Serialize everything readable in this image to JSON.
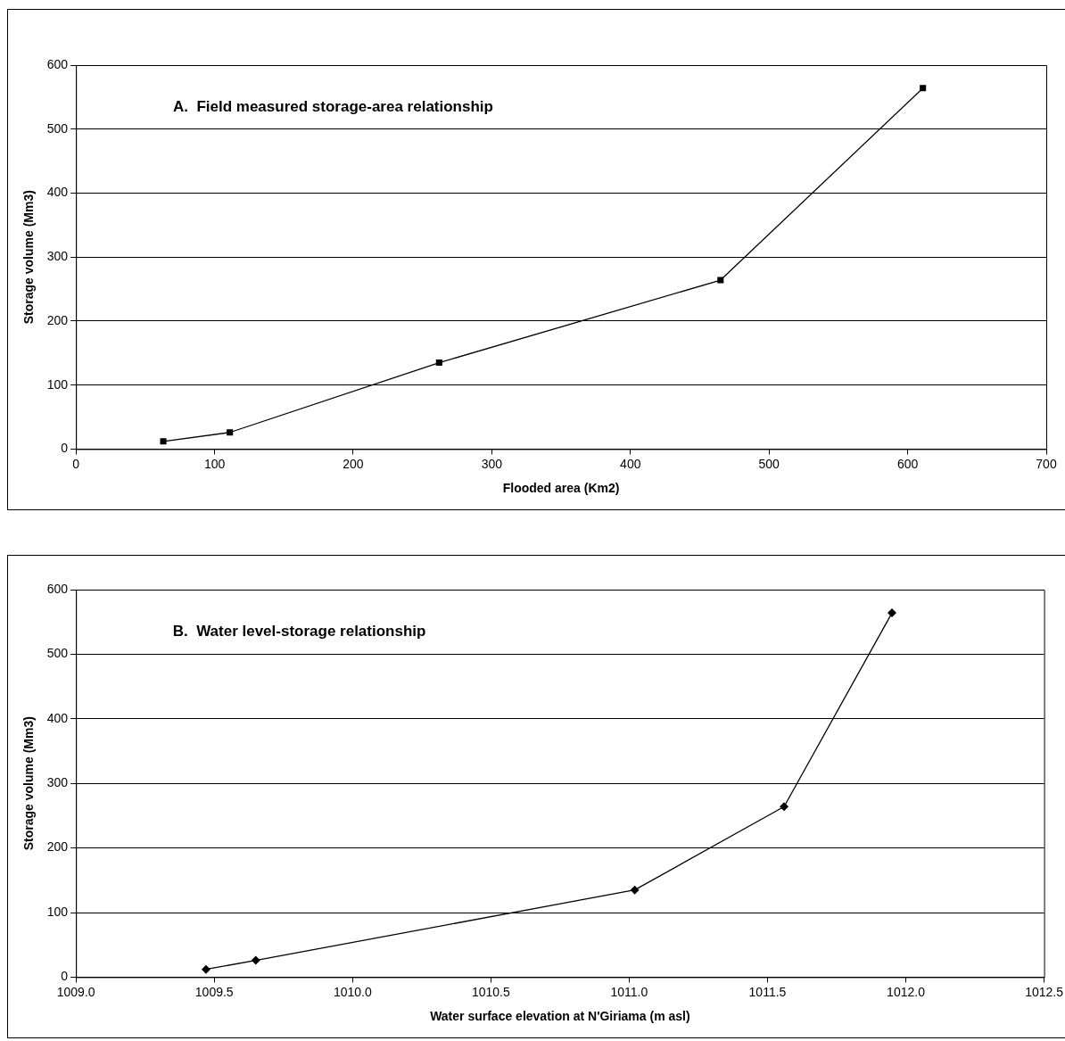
{
  "chart_data": [
    {
      "type": "line",
      "title": "A.  Field measured storage-area relationship",
      "xlabel": "Flooded area (Km2)",
      "ylabel": "Storage volume (Mm3)",
      "x": [
        63,
        111,
        262,
        465,
        611
      ],
      "series": [
        {
          "color": "#000000",
          "values": [
            12,
            26,
            135,
            264,
            564
          ]
        }
      ],
      "xlim": [
        0,
        700
      ],
      "xticks": [
        0,
        100,
        200,
        300,
        400,
        500,
        600,
        700
      ],
      "ylim": [
        0,
        600
      ],
      "yticks": [
        0,
        100,
        200,
        300,
        400,
        500,
        600
      ],
      "grid": "y",
      "legend": false,
      "marker": "square",
      "line_style": "solid"
    },
    {
      "type": "line",
      "title": "B.  Water level-storage relationship",
      "xlabel": "Water surface elevation at N'Giriama (m asl)",
      "ylabel": "Storage volume (Mm3)",
      "x": [
        1009.47,
        1009.65,
        1011.02,
        1011.56,
        1011.95
      ],
      "series": [
        {
          "color": "#000000",
          "values": [
            12,
            26,
            135,
            264,
            564
          ]
        }
      ],
      "xlim": [
        1009,
        1012.5
      ],
      "xticks": [
        {
          "value": 1009,
          "label": "1009.0"
        },
        {
          "value": 1009.5,
          "label": "1009.5"
        },
        {
          "value": 1010,
          "label": "1010.0"
        },
        {
          "value": 1010.5,
          "label": "1010.5"
        },
        {
          "value": 1011,
          "label": "1011.0"
        },
        {
          "value": 1011.5,
          "label": "1011.5"
        },
        {
          "value": 1012,
          "label": "1012.0"
        },
        {
          "value": 1012.5,
          "label": "1012.5"
        }
      ],
      "ylim": [
        0,
        600
      ],
      "yticks": [
        0,
        100,
        200,
        300,
        400,
        500,
        600
      ],
      "grid": "y",
      "legend": false,
      "marker": "diamond",
      "line_style": "solid"
    }
  ]
}
